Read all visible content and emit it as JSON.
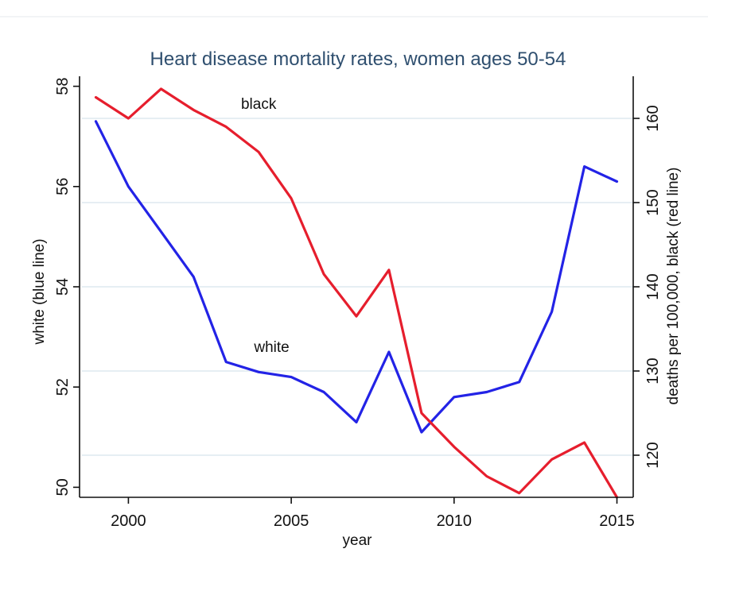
{
  "chart_data": {
    "type": "line",
    "title": "Heart disease mortality rates, women ages 50-54",
    "xlabel": "year",
    "ylabel_left": "white (blue line)",
    "ylabel_right": "deaths per 100,000, black (red line)",
    "x": [
      1999,
      2000,
      2001,
      2002,
      2003,
      2004,
      2005,
      2006,
      2007,
      2008,
      2009,
      2010,
      2011,
      2012,
      2013,
      2014,
      2015
    ],
    "xlim": [
      1998.5,
      2015.5
    ],
    "xticks": [
      "2000",
      "2005",
      "2010",
      "2015"
    ],
    "ylim_left": [
      49.8,
      58.2
    ],
    "yticks_left": [
      "50",
      "52",
      "54",
      "56",
      "58"
    ],
    "ylim_right": [
      115,
      165
    ],
    "yticks_right": [
      "120",
      "130",
      "140",
      "150",
      "160"
    ],
    "grid": "horizontal, right axis",
    "series": [
      {
        "name": "white",
        "axis": "left",
        "color": "#2323e6",
        "values": [
          57.3,
          56.0,
          55.1,
          54.2,
          52.5,
          52.3,
          52.2,
          51.9,
          51.3,
          52.7,
          51.1,
          51.8,
          51.9,
          52.1,
          53.5,
          56.4,
          56.1
        ]
      },
      {
        "name": "black",
        "axis": "right",
        "color": "#e61e2d",
        "values": [
          162.5,
          160.0,
          163.5,
          161.0,
          159.0,
          156.0,
          150.5,
          141.5,
          136.5,
          142.0,
          125.0,
          121.0,
          117.5,
          115.5,
          119.5,
          121.5,
          115.0
        ]
      }
    ],
    "annotations": [
      {
        "text": "black",
        "x": 2004,
        "y_left": 57.55
      },
      {
        "text": "white",
        "x": 2004.4,
        "y_left": 52.7
      }
    ]
  }
}
